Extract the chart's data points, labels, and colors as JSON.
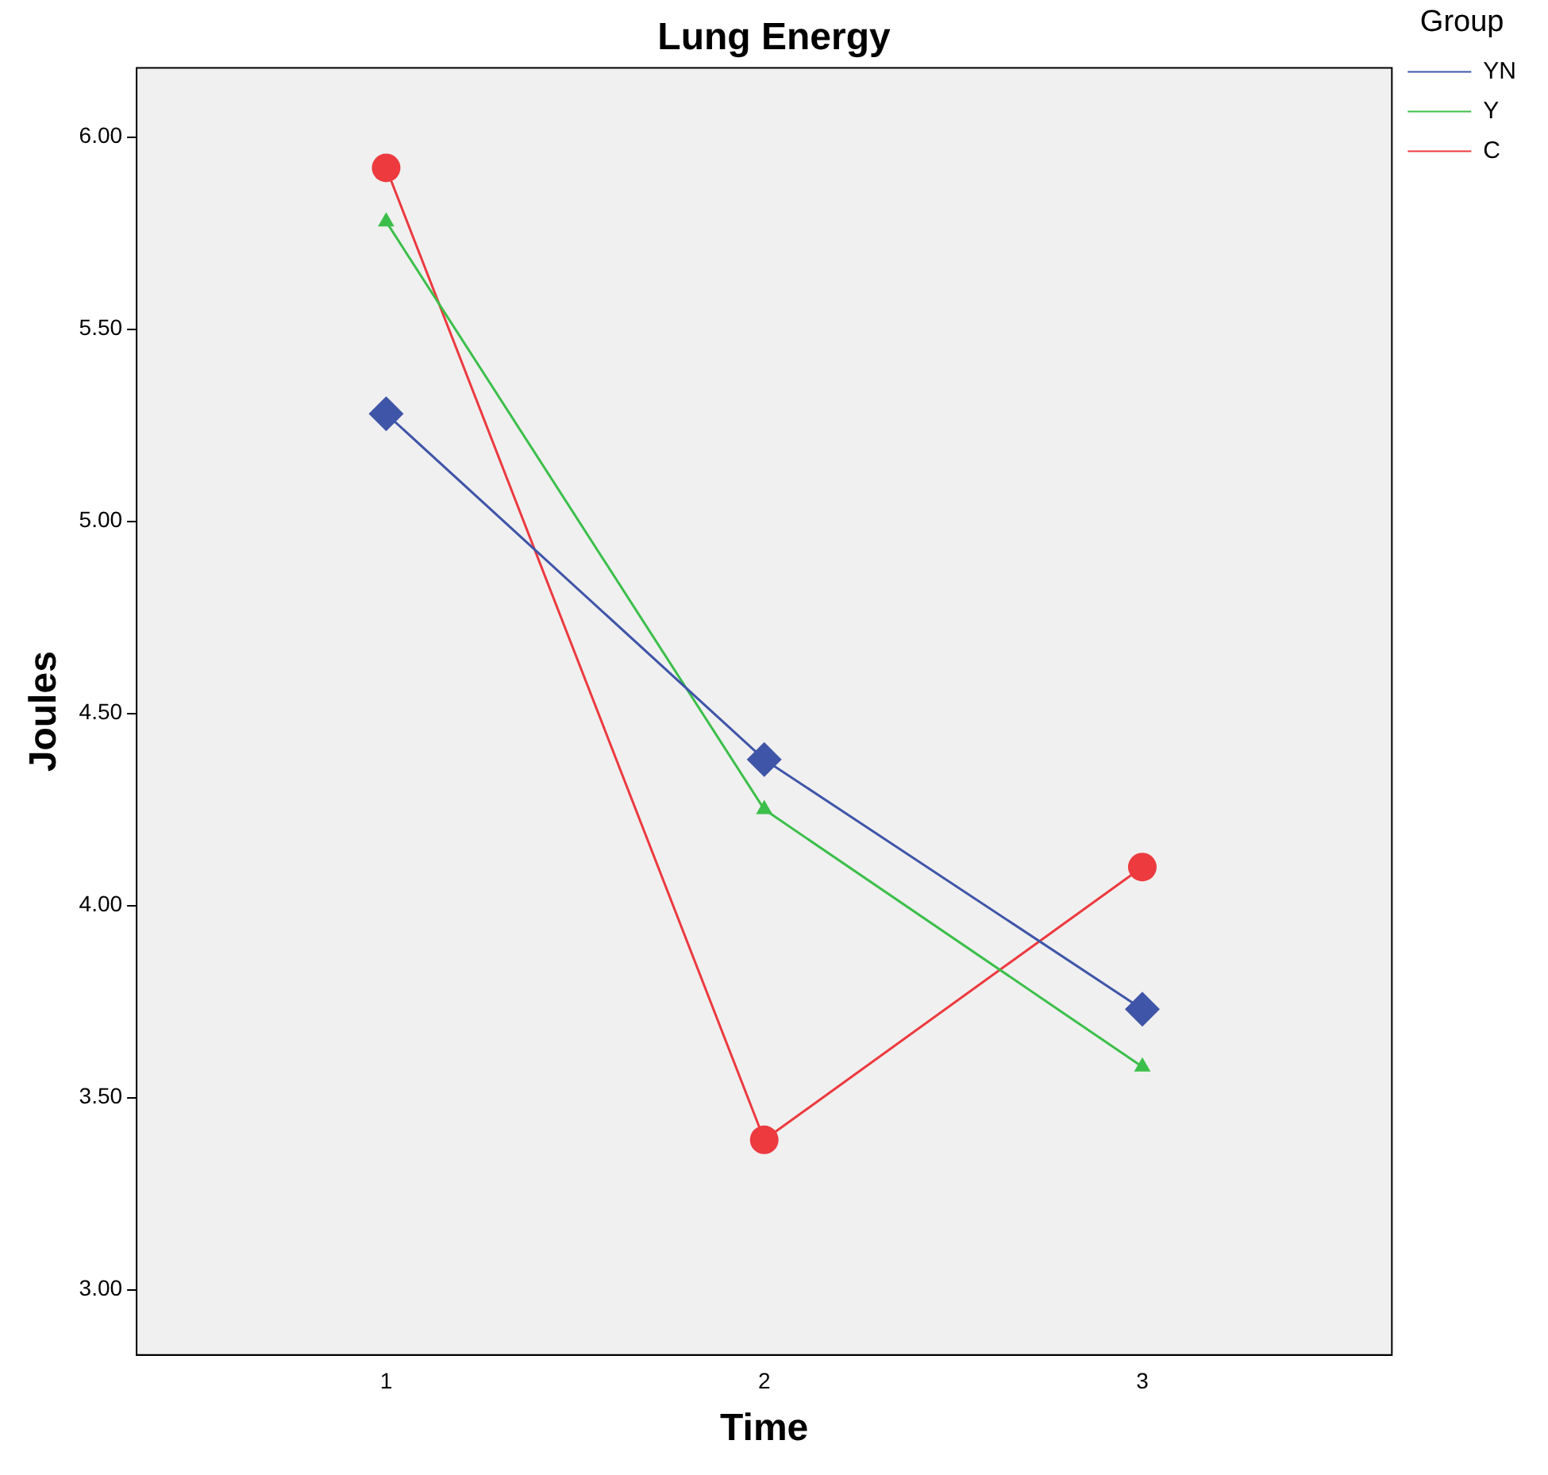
{
  "chart_data": {
    "type": "line",
    "title": "Lung Energy",
    "xlabel": "Time",
    "ylabel": "Joules",
    "legend_title": "Group",
    "legend": "right",
    "grid": false,
    "x": [
      1,
      2,
      3
    ],
    "xlim": [
      0.34,
      3.66
    ],
    "xticks": [
      1,
      2,
      3
    ],
    "ylim": [
      2.83,
      6.18
    ],
    "yticks": [
      {
        "value": 3,
        "label": "3.00"
      },
      {
        "value": 3.5,
        "label": "3.50"
      },
      {
        "value": 4,
        "label": "4.00"
      },
      {
        "value": 4.5,
        "label": "4.50"
      },
      {
        "value": 5,
        "label": "5.00"
      },
      {
        "value": 5.5,
        "label": "5.50"
      },
      {
        "value": 6,
        "label": "6.00"
      }
    ],
    "series": [
      {
        "name": "YN",
        "color": "#3f55a8",
        "marker": "diamond",
        "values": [
          5.28,
          4.38,
          3.73
        ]
      },
      {
        "name": "Y",
        "color": "#3cbf4a",
        "marker": "triangle",
        "values": [
          5.78,
          4.25,
          3.58
        ]
      },
      {
        "name": "C",
        "color": "#ec3a3f",
        "marker": "circle",
        "values": [
          5.92,
          3.39,
          4.1
        ]
      }
    ]
  }
}
